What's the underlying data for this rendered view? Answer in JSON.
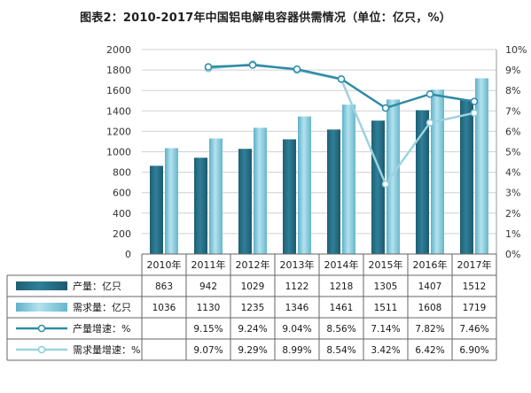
{
  "title": "图表2：2010-2017年中国铝电解电容器供需情况（单位：亿只，%）",
  "colors": {
    "production_bar": "#2f7f99",
    "demand_bar": "#7fc6da",
    "production_line": "#2e8aa5",
    "demand_line": "#9ed2df",
    "grid": "#d0d0d0",
    "table_border": "#666666"
  },
  "chart_data": {
    "type": "bar",
    "categories": [
      "2010年",
      "2011年",
      "2012年",
      "2013年",
      "2014年",
      "2015年",
      "2016年",
      "2017年"
    ],
    "y_left_ticks": [
      "0",
      "200",
      "400",
      "600",
      "800",
      "1000",
      "1200",
      "1400",
      "1600",
      "1800",
      "2000"
    ],
    "y_right_ticks": [
      "0%",
      "1%",
      "2%",
      "3%",
      "4%",
      "5%",
      "6%",
      "7%",
      "8%",
      "9%",
      "10%"
    ],
    "ylim_left": [
      0,
      2000
    ],
    "ylim_right": [
      0,
      10
    ],
    "grid": true,
    "series": [
      {
        "name": "产量：亿只",
        "kind": "bar",
        "values": [
          863,
          942,
          1029,
          1122,
          1218,
          1305,
          1407,
          1512
        ],
        "labels": [
          "863",
          "942",
          "1029",
          "1122",
          "1218",
          "1305",
          "1407",
          "1512"
        ]
      },
      {
        "name": "需求量：亿只",
        "kind": "bar",
        "values": [
          1036,
          1130,
          1235,
          1346,
          1461,
          1511,
          1608,
          1719
        ],
        "labels": [
          "1036",
          "1130",
          "1235",
          "1346",
          "1461",
          "1511",
          "1608",
          "1719"
        ]
      },
      {
        "name": "产量增速：%",
        "kind": "line",
        "values": [
          null,
          9.15,
          9.24,
          9.04,
          8.56,
          7.14,
          7.82,
          7.46
        ],
        "labels": [
          "",
          "9.15%",
          "9.24%",
          "9.04%",
          "8.56%",
          "7.14%",
          "7.82%",
          "7.46%"
        ]
      },
      {
        "name": "需求量增速：%",
        "kind": "line",
        "values": [
          null,
          9.07,
          9.29,
          8.99,
          8.54,
          3.42,
          6.42,
          6.9
        ],
        "labels": [
          "",
          "9.07%",
          "9.29%",
          "8.99%",
          "8.54%",
          "3.42%",
          "6.42%",
          "6.90%"
        ]
      }
    ]
  }
}
